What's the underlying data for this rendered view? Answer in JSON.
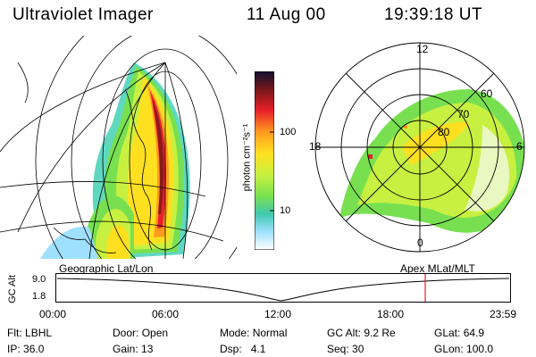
{
  "header": {
    "instrument": "Ultraviolet Imager",
    "date": "11 Aug 00",
    "time": "19:39:18 UT"
  },
  "colorbar": {
    "unit_label": "photon cm⁻²s⁻¹",
    "ticks": [
      "100",
      "10"
    ],
    "colors": [
      "#101030",
      "#8a1a1a",
      "#e8202a",
      "#ff9a20",
      "#ffe020",
      "#c8f040",
      "#78e050",
      "#40c8b0",
      "#a0e0ff",
      "#ffffff"
    ]
  },
  "left_panel": {
    "label": "Geographic Lat/Lon"
  },
  "right_panel": {
    "label": "Apex MLat/MLT",
    "mlt_labels": {
      "top": "12",
      "bottom": "0",
      "left": "18",
      "right": "6"
    },
    "mlat_labels": [
      "60",
      "70",
      "80"
    ]
  },
  "altitude_plot": {
    "y_title": "GC Alt",
    "y_ticks": [
      "9.0",
      "1.8"
    ],
    "x_ticks": [
      "00:00",
      "06:00",
      "12:00",
      "18:00",
      "23:59"
    ]
  },
  "status": {
    "row1": [
      {
        "label": "Flt:",
        "value": "LBHL"
      },
      {
        "label": "Door:",
        "value": "Open"
      },
      {
        "label": "Mode:",
        "value": "Normal"
      },
      {
        "label": "GC Alt:",
        "value": "9.2 Re"
      },
      {
        "label": "GLat:",
        "value": "64.9"
      }
    ],
    "row2": [
      {
        "label": "IP:",
        "value": "36.0"
      },
      {
        "label": "Gain:",
        "value": "13"
      },
      {
        "label": "Dsp:",
        "value": "4.1"
      },
      {
        "label": "Seq:",
        "value": "30"
      },
      {
        "label": "GLon:",
        "value": "100.0"
      }
    ]
  }
}
